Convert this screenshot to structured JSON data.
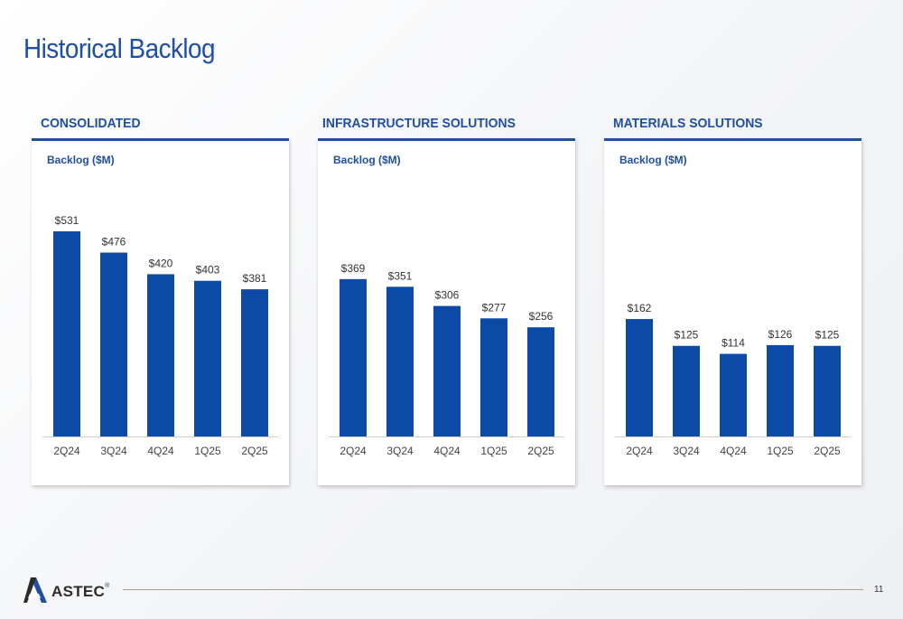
{
  "page": {
    "title": "Historical Backlog",
    "page_number": "11",
    "logo_text": "ASTEC",
    "logo_reg": "®"
  },
  "colors": {
    "accent": "#1e4fa3",
    "bar": "#0b4aa6",
    "title": "#1f4fa3"
  },
  "chart_data": [
    {
      "type": "bar",
      "header": "CONSOLIDATED",
      "subtitle": "Backlog ($M)",
      "categories": [
        "2Q24",
        "3Q24",
        "4Q24",
        "1Q25",
        "2Q25"
      ],
      "values": [
        531,
        476,
        420,
        403,
        381
      ],
      "labels": [
        "$531",
        "$476",
        "$420",
        "$403",
        "$381"
      ],
      "ylim": [
        0,
        531
      ]
    },
    {
      "type": "bar",
      "header": "INFRASTRUCTURE SOLUTIONS",
      "subtitle": "Backlog ($M)",
      "categories": [
        "2Q24",
        "3Q24",
        "4Q24",
        "1Q25",
        "2Q25"
      ],
      "values": [
        369,
        351,
        306,
        277,
        256
      ],
      "labels": [
        "$369",
        "$351",
        "$306",
        "$277",
        "$256"
      ],
      "ylim": [
        0,
        481
      ]
    },
    {
      "type": "bar",
      "header": "MATERIALS SOLUTIONS",
      "subtitle": "Backlog ($M)",
      "categories": [
        "2Q24",
        "3Q24",
        "4Q24",
        "1Q25",
        "2Q25"
      ],
      "values": [
        162,
        125,
        114,
        126,
        125
      ],
      "labels": [
        "$162",
        "$125",
        "$114",
        "$126",
        "$125"
      ],
      "ylim": [
        0,
        283
      ]
    }
  ]
}
